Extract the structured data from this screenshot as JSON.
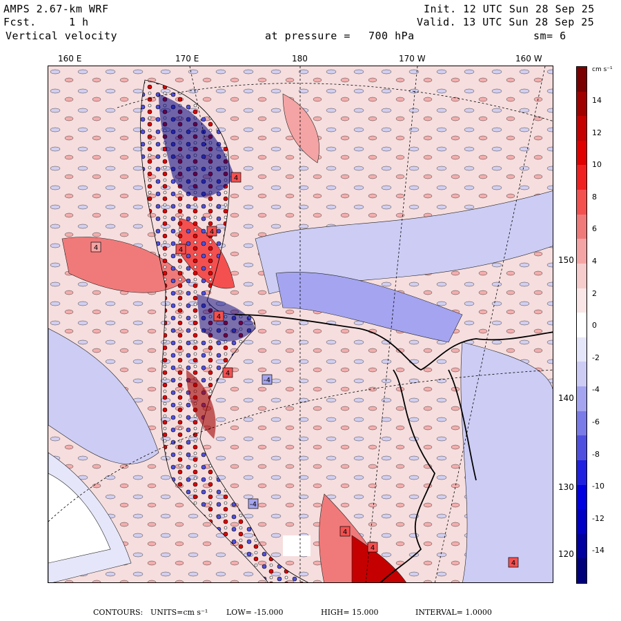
{
  "header": {
    "model": "AMPS 2.67-km WRF",
    "fcst_label": "Fcst.",
    "fcst_value": "1 h",
    "field": "Vertical velocity",
    "init": "Init. 12 UTC Sun 28 Sep 25",
    "valid": "Valid. 13 UTC Sun 28 Sep 25",
    "level_label": "at pressure =",
    "level_value": "700 hPa",
    "smoothing": "sm= 6"
  },
  "longitude_labels": [
    "160 E",
    "170 E",
    "180",
    "170 W",
    "160 W"
  ],
  "latitude_labels": [
    "150 W",
    "140 W",
    "130 W",
    "120 W"
  ],
  "colorbar": {
    "units": "cm s⁻¹",
    "ticks": [
      "14",
      "12",
      "10",
      "8",
      "6",
      "4",
      "2",
      "0",
      "-2",
      "-4",
      "-6",
      "-8",
      "-10",
      "-12",
      "-14"
    ],
    "colors": [
      "#7a0000",
      "#a00000",
      "#c40000",
      "#e00000",
      "#f02020",
      "#f45050",
      "#f07a7a",
      "#f4a4a4",
      "#f6cccc",
      "#fae6e6",
      "#ffffff",
      "#e6e6fa",
      "#ccccf4",
      "#a4a4f0",
      "#7a7ae8",
      "#5050e0",
      "#2020e0",
      "#0000e0",
      "#0000c4",
      "#0000a0",
      "#00007a"
    ]
  },
  "map": {
    "contour_labels": [
      "4",
      "4",
      "4",
      "4",
      "4",
      "-4",
      "-4",
      "4",
      "4",
      "4",
      "4"
    ]
  },
  "footer": {
    "contours": "CONTOURS:",
    "units": "UNITS=cm s⁻¹",
    "low": "LOW= -15.000",
    "high": "HIGH= 15.000",
    "interval": "INTERVAL= 1.0000"
  }
}
